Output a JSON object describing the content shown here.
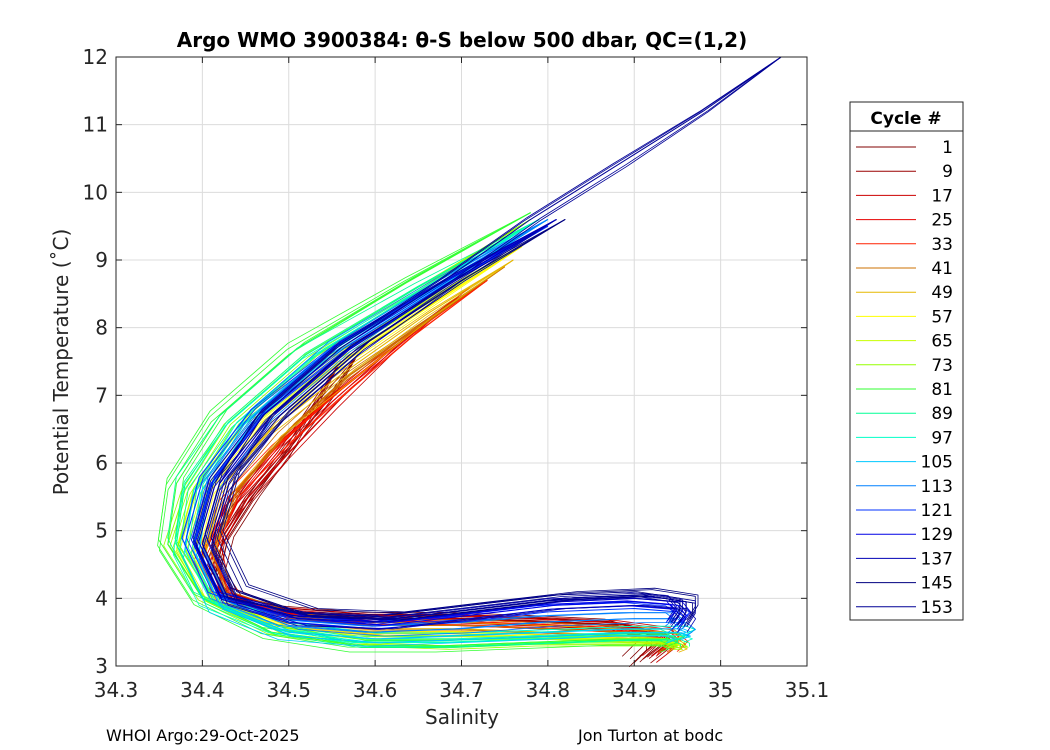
{
  "chart_data": {
    "type": "line",
    "title": "Argo WMO 3900384: θ-S below 500 dbar,  QC=(1,2)",
    "xlabel": "Salinity",
    "ylabel": "Potential Temperature (˚C)",
    "xlim": [
      34.3,
      35.1
    ],
    "ylim": [
      3,
      12
    ],
    "xticks": [
      34.3,
      34.4,
      34.5,
      34.6,
      34.7,
      34.8,
      34.9,
      35,
      35.1
    ],
    "xtick_labels": [
      "34.3",
      "34.4",
      "34.5",
      "34.6",
      "34.7",
      "34.8",
      "34.9",
      "35",
      "35.1"
    ],
    "yticks": [
      3,
      4,
      5,
      6,
      7,
      8,
      9,
      10,
      11,
      12
    ],
    "ytick_labels": [
      "3",
      "4",
      "5",
      "6",
      "7",
      "8",
      "9",
      "10",
      "11",
      "12"
    ],
    "grid": true,
    "legend_title": "Cycle #",
    "legend_position": "right",
    "series": [
      {
        "name": "1",
        "color": "#800000",
        "s": [
          34.58,
          34.55,
          34.5,
          34.46,
          34.43,
          34.42,
          34.44,
          34.5,
          34.6,
          34.7,
          34.8,
          34.88,
          34.92,
          34.92,
          34.9
        ],
        "t": [
          7.6,
          7.0,
          6.2,
          5.5,
          4.9,
          4.4,
          4.0,
          3.8,
          3.7,
          3.7,
          3.65,
          3.6,
          3.45,
          3.3,
          3.05
        ]
      },
      {
        "name": "9",
        "color": "#9a0000",
        "s": [
          34.56,
          34.53,
          34.49,
          34.45,
          34.42,
          34.41,
          34.43,
          34.5,
          34.6,
          34.7,
          34.8,
          34.88,
          34.93,
          34.93,
          34.91
        ],
        "t": [
          7.5,
          6.9,
          6.1,
          5.5,
          4.9,
          4.3,
          3.95,
          3.75,
          3.7,
          3.7,
          3.65,
          3.6,
          3.45,
          3.3,
          3.1
        ]
      },
      {
        "name": "17",
        "color": "#cc0000",
        "s": [
          34.7,
          34.62,
          34.55,
          34.49,
          34.44,
          34.41,
          34.42,
          34.48,
          34.58,
          34.68,
          34.78,
          34.87,
          34.93,
          34.94,
          34.92
        ],
        "t": [
          8.5,
          7.7,
          6.9,
          6.1,
          5.4,
          4.7,
          4.1,
          3.8,
          3.7,
          3.7,
          3.65,
          3.6,
          3.5,
          3.35,
          3.15
        ]
      },
      {
        "name": "25",
        "color": "#e60000",
        "s": [
          34.71,
          34.63,
          34.55,
          34.48,
          34.43,
          34.4,
          34.42,
          34.48,
          34.58,
          34.68,
          34.78,
          34.87,
          34.93,
          34.94,
          34.93
        ],
        "t": [
          8.6,
          7.8,
          7.0,
          6.2,
          5.4,
          4.6,
          4.0,
          3.75,
          3.65,
          3.65,
          3.6,
          3.55,
          3.45,
          3.35,
          3.2
        ]
      },
      {
        "name": "33",
        "color": "#ff2000",
        "s": [
          34.73,
          34.64,
          34.56,
          34.49,
          34.43,
          34.4,
          34.42,
          34.49,
          34.59,
          34.69,
          34.79,
          34.88,
          34.94,
          34.95,
          34.94
        ],
        "t": [
          8.7,
          7.9,
          7.1,
          6.3,
          5.5,
          4.6,
          4.0,
          3.75,
          3.65,
          3.65,
          3.6,
          3.55,
          3.45,
          3.35,
          3.25
        ]
      },
      {
        "name": "41",
        "color": "#cc7000",
        "s": [
          34.75,
          34.66,
          34.57,
          34.5,
          34.44,
          34.41,
          34.43,
          34.5,
          34.6,
          34.7,
          34.8,
          34.89,
          34.94,
          34.95,
          34.94
        ],
        "t": [
          8.9,
          8.1,
          7.3,
          6.5,
          5.6,
          4.7,
          4.0,
          3.7,
          3.6,
          3.6,
          3.55,
          3.5,
          3.45,
          3.35,
          3.25
        ]
      },
      {
        "name": "49",
        "color": "#e6b800",
        "s": [
          34.76,
          34.66,
          34.56,
          34.48,
          34.42,
          34.4,
          34.42,
          34.49,
          34.6,
          34.7,
          34.8,
          34.89,
          34.94,
          34.95,
          34.94
        ],
        "t": [
          9.0,
          8.2,
          7.3,
          6.5,
          5.6,
          4.6,
          3.95,
          3.65,
          3.55,
          3.55,
          3.5,
          3.45,
          3.4,
          3.35,
          3.3
        ]
      },
      {
        "name": "57",
        "color": "#ffff00",
        "s": [
          34.77,
          34.66,
          34.55,
          34.47,
          34.41,
          34.39,
          34.42,
          34.5,
          34.6,
          34.7,
          34.8,
          34.89,
          34.94,
          34.95,
          34.95
        ],
        "t": [
          9.2,
          8.3,
          7.4,
          6.6,
          5.6,
          4.6,
          3.95,
          3.6,
          3.5,
          3.5,
          3.45,
          3.4,
          3.4,
          3.35,
          3.3
        ]
      },
      {
        "name": "65",
        "color": "#c8ff00",
        "s": [
          34.78,
          34.66,
          34.54,
          34.45,
          34.39,
          34.37,
          34.4,
          34.48,
          34.58,
          34.68,
          34.78,
          34.88,
          34.94,
          34.95,
          34.95
        ],
        "t": [
          9.3,
          8.4,
          7.5,
          6.6,
          5.6,
          4.7,
          4.0,
          3.55,
          3.4,
          3.4,
          3.4,
          3.4,
          3.35,
          3.3,
          3.3
        ]
      },
      {
        "name": "73",
        "color": "#96ff00",
        "s": [
          34.78,
          34.65,
          34.52,
          34.43,
          34.38,
          34.36,
          34.4,
          34.48,
          34.58,
          34.68,
          34.78,
          34.88,
          34.94,
          34.95,
          34.94
        ],
        "t": [
          9.6,
          8.6,
          7.6,
          6.6,
          5.6,
          4.8,
          4.0,
          3.5,
          3.35,
          3.3,
          3.35,
          3.35,
          3.35,
          3.3,
          3.3
        ]
      },
      {
        "name": "81",
        "color": "#32ff32",
        "s": [
          34.78,
          34.64,
          34.51,
          34.42,
          34.37,
          34.36,
          34.4,
          34.48,
          34.58,
          34.68,
          34.78,
          34.88,
          34.94,
          34.95,
          34.94
        ],
        "t": [
          9.7,
          8.7,
          7.7,
          6.7,
          5.7,
          4.8,
          4.0,
          3.5,
          3.3,
          3.3,
          3.35,
          3.4,
          3.4,
          3.35,
          3.3
        ]
      },
      {
        "name": "89",
        "color": "#00ff96",
        "s": [
          34.79,
          34.65,
          34.52,
          34.43,
          34.38,
          34.37,
          34.4,
          34.48,
          34.58,
          34.68,
          34.78,
          34.88,
          34.94,
          34.95,
          34.95
        ],
        "t": [
          9.6,
          8.6,
          7.6,
          6.6,
          5.7,
          4.8,
          4.0,
          3.55,
          3.35,
          3.35,
          3.4,
          3.45,
          3.45,
          3.4,
          3.35
        ]
      },
      {
        "name": "97",
        "color": "#00ffc8",
        "s": [
          34.79,
          34.66,
          34.53,
          34.44,
          34.39,
          34.38,
          34.41,
          34.49,
          34.59,
          34.69,
          34.79,
          34.89,
          34.95,
          34.96,
          34.95
        ],
        "t": [
          9.6,
          8.6,
          7.6,
          6.6,
          5.6,
          4.7,
          3.95,
          3.55,
          3.4,
          3.4,
          3.45,
          3.5,
          3.5,
          3.45,
          3.4
        ]
      },
      {
        "name": "105",
        "color": "#00c8ff",
        "s": [
          34.8,
          34.67,
          34.54,
          34.45,
          34.4,
          34.39,
          34.42,
          34.5,
          34.6,
          34.7,
          34.8,
          34.89,
          34.95,
          34.96,
          34.95
        ],
        "t": [
          9.6,
          8.6,
          7.6,
          6.6,
          5.6,
          4.7,
          3.9,
          3.5,
          3.4,
          3.45,
          3.5,
          3.55,
          3.55,
          3.5,
          3.45
        ]
      },
      {
        "name": "113",
        "color": "#0080ff",
        "s": [
          34.8,
          34.68,
          34.56,
          34.47,
          34.41,
          34.39,
          34.42,
          34.5,
          34.6,
          34.7,
          34.8,
          34.9,
          34.95,
          34.96,
          34.95
        ],
        "t": [
          9.6,
          8.7,
          7.7,
          6.7,
          5.7,
          4.8,
          4.0,
          3.6,
          3.5,
          3.55,
          3.65,
          3.7,
          3.7,
          3.6,
          3.5
        ]
      },
      {
        "name": "121",
        "color": "#0030ff",
        "s": [
          34.8,
          34.68,
          34.56,
          34.47,
          34.41,
          34.39,
          34.42,
          34.5,
          34.6,
          34.7,
          34.8,
          34.9,
          34.95,
          34.96,
          34.95
        ],
        "t": [
          9.5,
          8.6,
          7.6,
          6.7,
          5.7,
          4.8,
          4.0,
          3.65,
          3.55,
          3.65,
          3.8,
          3.85,
          3.8,
          3.7,
          3.55
        ]
      },
      {
        "name": "129",
        "color": "#0000e6",
        "s": [
          34.81,
          34.69,
          34.57,
          34.48,
          34.42,
          34.4,
          34.43,
          34.51,
          34.61,
          34.71,
          34.81,
          34.9,
          34.95,
          34.96,
          34.95
        ],
        "t": [
          9.6,
          8.7,
          7.7,
          6.7,
          5.7,
          4.8,
          4.0,
          3.7,
          3.6,
          3.75,
          3.9,
          3.95,
          3.9,
          3.75,
          3.6
        ]
      },
      {
        "name": "137",
        "color": "#0000b4",
        "s": [
          34.81,
          34.69,
          34.57,
          34.48,
          34.42,
          34.4,
          34.43,
          34.51,
          34.61,
          34.71,
          34.81,
          34.9,
          34.95,
          34.96,
          34.95
        ],
        "t": [
          9.6,
          8.7,
          7.7,
          6.7,
          5.7,
          4.8,
          4.0,
          3.7,
          3.65,
          3.8,
          3.95,
          4.0,
          3.95,
          3.8,
          3.6
        ]
      },
      {
        "name": "145",
        "color": "#000080",
        "s": [
          34.82,
          34.7,
          34.58,
          34.49,
          34.43,
          34.41,
          34.44,
          34.52,
          34.62,
          34.72,
          34.82,
          34.91,
          34.96,
          34.96,
          34.95
        ],
        "t": [
          9.6,
          8.7,
          7.7,
          6.7,
          5.8,
          4.9,
          4.1,
          3.75,
          3.7,
          3.85,
          4.0,
          4.05,
          3.95,
          3.8,
          3.6
        ]
      },
      {
        "name": "153",
        "color": "#000096",
        "s": [
          35.07,
          34.98,
          34.88,
          34.78,
          34.68,
          34.56,
          34.47,
          34.42,
          34.4,
          34.43,
          34.52,
          34.62,
          34.72,
          34.82,
          34.91,
          34.96,
          34.96,
          34.95
        ],
        "t": [
          12.0,
          11.2,
          10.4,
          9.6,
          8.7,
          7.7,
          6.7,
          5.7,
          4.8,
          4.0,
          3.75,
          3.7,
          3.85,
          4.0,
          4.05,
          3.95,
          3.8,
          3.6
        ]
      }
    ]
  },
  "footer": {
    "left": "WHOI Argo:29-Oct-2025",
    "right": "Jon Turton at bodc"
  }
}
